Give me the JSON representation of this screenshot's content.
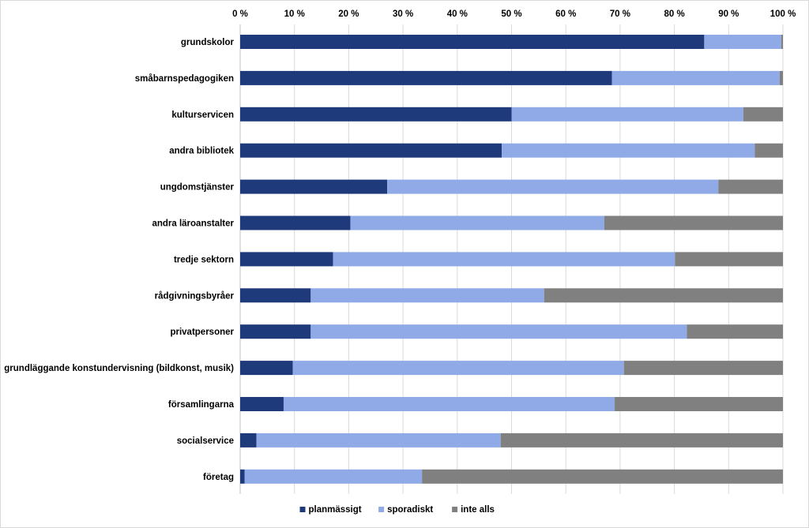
{
  "chart_data": {
    "type": "bar",
    "orientation": "horizontal",
    "stacked": true,
    "title": "",
    "xlabel": "",
    "ylabel": "",
    "xlim": [
      0,
      100
    ],
    "x_ticks": [
      "0 %",
      "10 %",
      "20 %",
      "30 %",
      "40 %",
      "50 %",
      "60 %",
      "70 %",
      "80 %",
      "90 %",
      "100 %"
    ],
    "axis_position": "top",
    "legend_position": "bottom",
    "categories": [
      "grundskolor",
      "småbarnspedagogiken",
      "kulturservicen",
      "andra bibliotek",
      "ungdomstjänster",
      "andra läroanstalter",
      "tredje sektorn",
      "rådgivningsbyråer",
      "privatpersoner",
      "grundläggande konstundervisning (bildkonst, musik)",
      "församlingarna",
      "socialservice",
      "företag"
    ],
    "series": [
      {
        "name": "planmässigt",
        "color": "#1f3a7a",
        "values": [
          85.5,
          68.5,
          50,
          48.2,
          27.1,
          20.3,
          17.1,
          13,
          13,
          9.7,
          8,
          3,
          0.8
        ]
      },
      {
        "name": "sporadiskt",
        "color": "#8faae6",
        "values": [
          14.2,
          30.9,
          42.7,
          46.6,
          61,
          46.8,
          63,
          43,
          69.3,
          61,
          61,
          45,
          32.7
        ]
      },
      {
        "name": "inte alls",
        "color": "#808080",
        "values": [
          0.3,
          0.6,
          7.3,
          5.2,
          11.9,
          32.9,
          19.9,
          44,
          17.7,
          29.3,
          31,
          52,
          66.5
        ]
      }
    ]
  }
}
